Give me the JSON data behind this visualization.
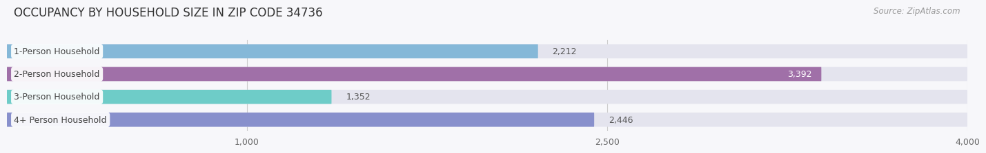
{
  "title": "OCCUPANCY BY HOUSEHOLD SIZE IN ZIP CODE 34736",
  "source_text": "Source: ZipAtlas.com",
  "categories": [
    "1-Person Household",
    "2-Person Household",
    "3-Person Household",
    "4+ Person Household"
  ],
  "values": [
    2212,
    3392,
    1352,
    2446
  ],
  "bar_colors": [
    "#85b8d8",
    "#a070a8",
    "#6eccc8",
    "#8890cc"
  ],
  "bar_bg_color": "#e4e4ee",
  "label_colors": [
    "#444444",
    "#ffffff",
    "#444444",
    "#444444"
  ],
  "xlim": [
    0,
    4000
  ],
  "xticks": [
    1000,
    2500,
    4000
  ],
  "title_fontsize": 12,
  "source_fontsize": 8.5,
  "bar_label_fontsize": 9,
  "cat_label_fontsize": 9,
  "tick_fontsize": 9,
  "background_color": "#f7f7fa"
}
